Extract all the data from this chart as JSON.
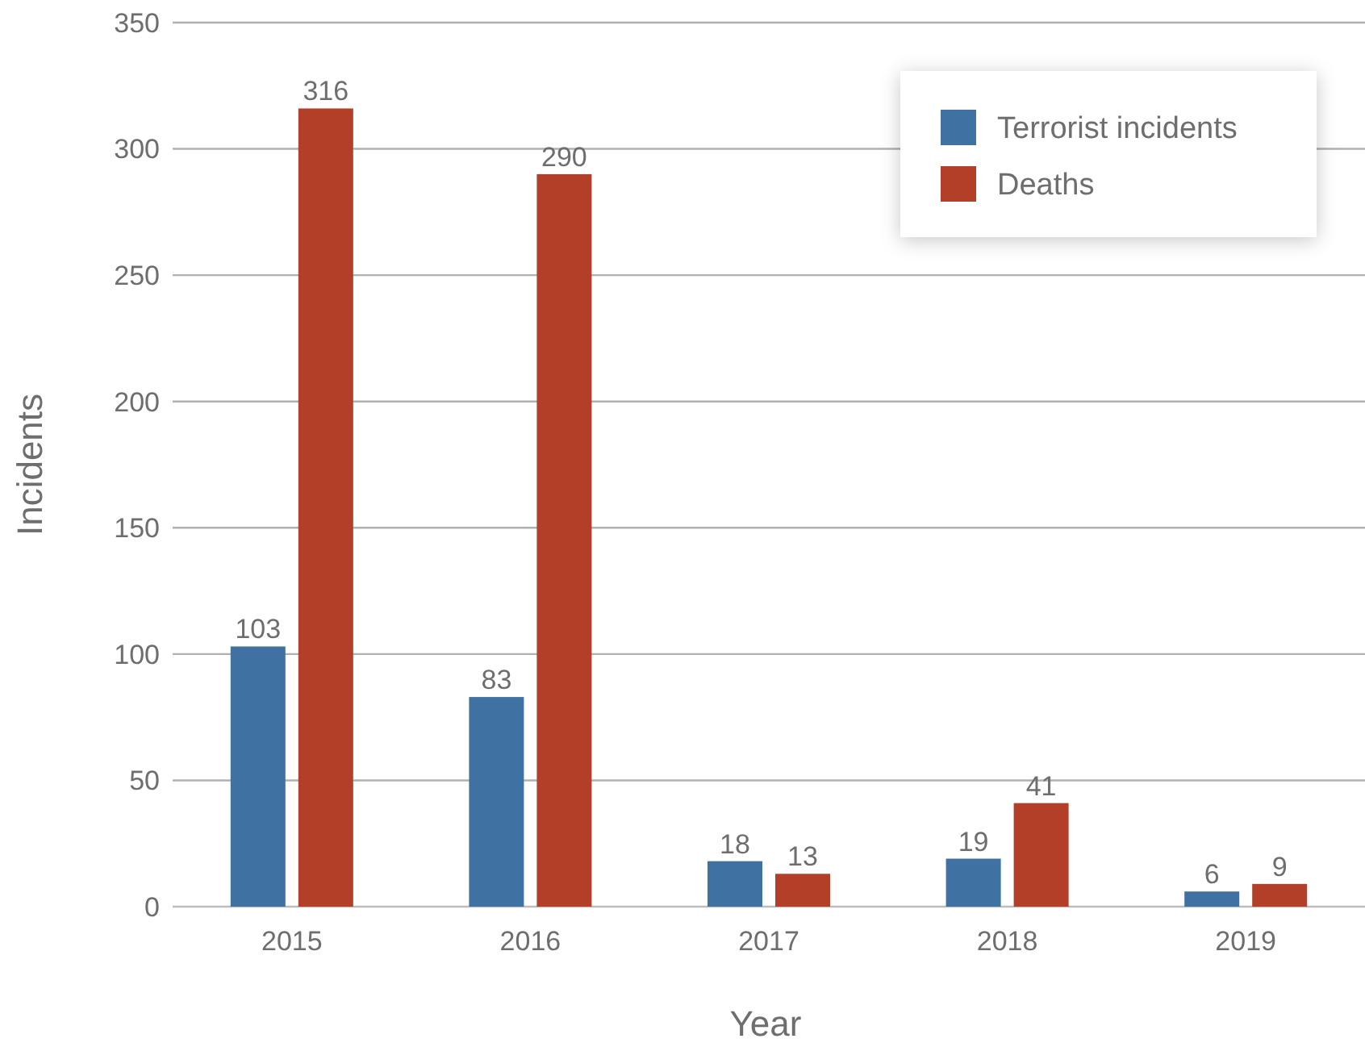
{
  "chart_data": {
    "type": "bar",
    "xlabel": "Year",
    "ylabel": "Incidents",
    "categories": [
      "2015",
      "2016",
      "2017",
      "2018",
      "2019"
    ],
    "series": [
      {
        "name": "Terrorist incidents",
        "color": "#3f72a3",
        "values": [
          103,
          83,
          18,
          19,
          6
        ]
      },
      {
        "name": "Deaths",
        "color": "#b43f28",
        "values": [
          316,
          290,
          13,
          41,
          9
        ]
      }
    ],
    "ylim": [
      0,
      350
    ],
    "yticks": [
      0,
      50,
      100,
      150,
      200,
      250,
      300,
      350
    ],
    "grid": "y",
    "legend": "top right",
    "data_labels": true
  }
}
